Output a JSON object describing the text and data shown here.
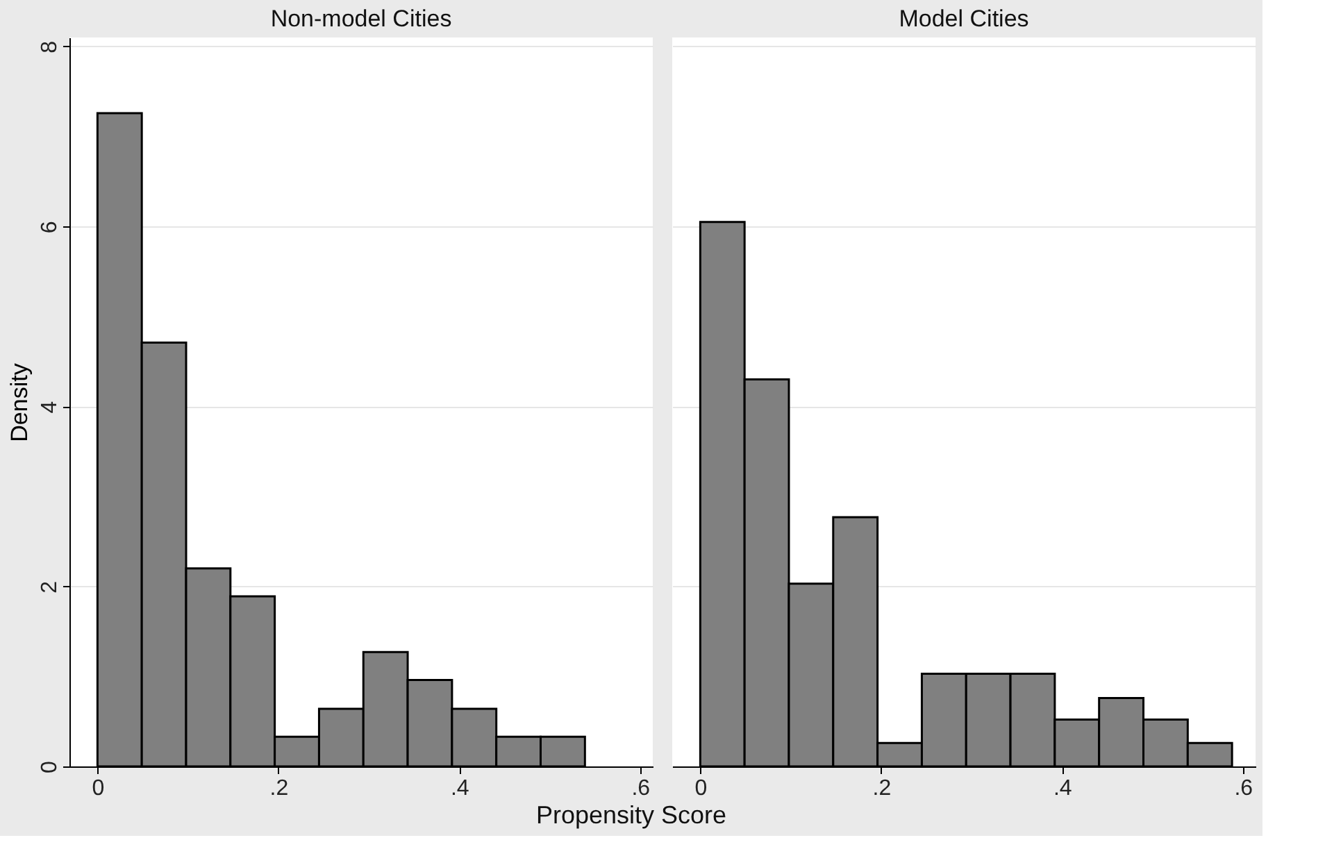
{
  "chart_data": [
    {
      "type": "histogram",
      "title": "Non-model Cities",
      "ylabel": "Density",
      "xlabel": "Propensity Score",
      "color": "#808080",
      "bins": [
        0,
        0.049,
        0.098,
        0.147,
        0.196,
        0.245,
        0.294,
        0.343,
        0.392,
        0.441,
        0.49,
        0.539
      ],
      "values": [
        7.26,
        4.71,
        2.2,
        1.89,
        0.33,
        0.64,
        1.27,
        0.96,
        0.64,
        0.33,
        0.33
      ],
      "xlim": [
        -0.031,
        0.614
      ],
      "ylim": [
        0,
        8.1
      ],
      "xticks": [
        0,
        {
          "value": 0.2,
          "label": ".2"
        },
        {
          "value": 0.4,
          "label": ".4"
        },
        {
          "value": 0.6,
          "label": ".6"
        }
      ],
      "yticks": [
        0,
        2,
        4,
        6,
        8
      ],
      "grid": "y"
    },
    {
      "type": "histogram",
      "title": "Model Cities",
      "color": "#808080",
      "bins": [
        0,
        0.049,
        0.098,
        0.147,
        0.196,
        0.245,
        0.294,
        0.343,
        0.392,
        0.441,
        0.49,
        0.539,
        0.588
      ],
      "values": [
        6.05,
        4.3,
        2.03,
        2.77,
        0.26,
        1.03,
        1.03,
        1.03,
        0.52,
        0.76,
        0.52,
        0.26
      ],
      "xlim": [
        -0.031,
        0.614
      ],
      "ylim": [
        0,
        8.1
      ],
      "xticks": [
        0,
        {
          "value": 0.2,
          "label": ".2"
        },
        {
          "value": 0.4,
          "label": ".4"
        },
        {
          "value": 0.6,
          "label": ".6"
        }
      ],
      "yticks": [
        0,
        2,
        4,
        6,
        8
      ],
      "grid": "y",
      "tick_labels": "x"
    }
  ]
}
